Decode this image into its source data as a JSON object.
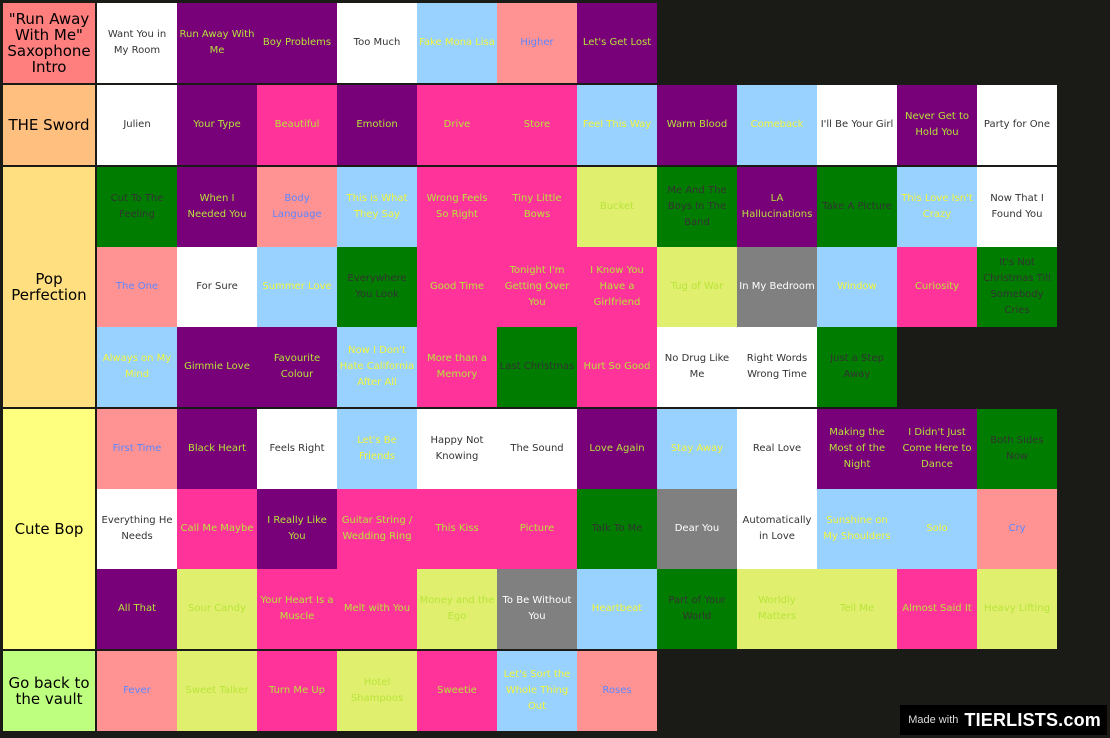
{
  "colors": {
    "white": "#ffffff",
    "purple": "#780078",
    "pink": "#ff3399",
    "salmon": "#ff9393",
    "lightblue": "#99d1ff",
    "green": "#007c00",
    "yellow": "#e0ef6d",
    "gray": "#808080",
    "text_dark": "#333333",
    "text_lightgreen": "#b8e43a",
    "text_yellow": "#f3f63a",
    "text_blue": "#5a86ff",
    "text_white": "#ffffff",
    "text_black": "#000000"
  },
  "tiers": [
    {
      "label": "\"Run Away With Me\" Saxophone Intro",
      "color": "#ff7f7f",
      "items": [
        {
          "text": "Want You in My Room",
          "bg": "white",
          "fg": "text_dark"
        },
        {
          "text": "Run Away With Me",
          "bg": "purple",
          "fg": "text_lightgreen"
        },
        {
          "text": "Boy Problems",
          "bg": "purple",
          "fg": "text_lightgreen"
        },
        {
          "text": "Too Much",
          "bg": "white",
          "fg": "text_dark"
        },
        {
          "text": "Fake Mona Lisa",
          "bg": "lightblue",
          "fg": "text_yellow"
        },
        {
          "text": "Higher",
          "bg": "salmon",
          "fg": "text_blue"
        },
        {
          "text": "Let's Get Lost",
          "bg": "purple",
          "fg": "text_lightgreen"
        }
      ]
    },
    {
      "label": "THE Sword",
      "color": "#ffbf7f",
      "items": [
        {
          "text": "Julien",
          "bg": "white",
          "fg": "text_dark"
        },
        {
          "text": "Your Type",
          "bg": "purple",
          "fg": "text_lightgreen"
        },
        {
          "text": "Beautiful",
          "bg": "pink",
          "fg": "text_lightgreen"
        },
        {
          "text": "Emotion",
          "bg": "purple",
          "fg": "text_lightgreen"
        },
        {
          "text": "Drive",
          "bg": "pink",
          "fg": "text_lightgreen"
        },
        {
          "text": "Store",
          "bg": "pink",
          "fg": "text_lightgreen"
        },
        {
          "text": "Feel This Way",
          "bg": "lightblue",
          "fg": "text_yellow"
        },
        {
          "text": "Warm Blood",
          "bg": "purple",
          "fg": "text_lightgreen"
        },
        {
          "text": "Comeback",
          "bg": "lightblue",
          "fg": "text_yellow"
        },
        {
          "text": "I'll Be Your Girl",
          "bg": "white",
          "fg": "text_dark"
        },
        {
          "text": "Never Get to Hold You",
          "bg": "purple",
          "fg": "text_lightgreen"
        },
        {
          "text": "Party for One",
          "bg": "white",
          "fg": "text_dark"
        }
      ]
    },
    {
      "label": "Pop Perfection",
      "color": "#ffdf7f",
      "items": [
        {
          "text": "Cut To The Feeling",
          "bg": "green",
          "fg": "text_dark"
        },
        {
          "text": "When I Needed You",
          "bg": "purple",
          "fg": "text_lightgreen"
        },
        {
          "text": "Body Language",
          "bg": "salmon",
          "fg": "text_blue"
        },
        {
          "text": "This is What They Say",
          "bg": "lightblue",
          "fg": "text_yellow"
        },
        {
          "text": "Wrong Feels So Right",
          "bg": "pink",
          "fg": "text_lightgreen"
        },
        {
          "text": "Tiny Little Bows",
          "bg": "pink",
          "fg": "text_lightgreen"
        },
        {
          "text": "Bucket",
          "bg": "yellow",
          "fg": "text_lightgreen"
        },
        {
          "text": "Me And The Boys In The Band",
          "bg": "green",
          "fg": "text_dark"
        },
        {
          "text": "LA Hallucinations",
          "bg": "purple",
          "fg": "text_lightgreen"
        },
        {
          "text": "Take A Picture",
          "bg": "green",
          "fg": "text_dark"
        },
        {
          "text": "This Love Isn't Crazy",
          "bg": "lightblue",
          "fg": "text_yellow"
        },
        {
          "text": "Now That I Found You",
          "bg": "white",
          "fg": "text_dark"
        },
        {
          "text": "The One",
          "bg": "salmon",
          "fg": "text_blue"
        },
        {
          "text": "For Sure",
          "bg": "white",
          "fg": "text_dark"
        },
        {
          "text": "Summer Love",
          "bg": "lightblue",
          "fg": "text_yellow"
        },
        {
          "text": "Everywhere You Look",
          "bg": "green",
          "fg": "text_dark"
        },
        {
          "text": "Good Time",
          "bg": "pink",
          "fg": "text_lightgreen"
        },
        {
          "text": "Tonight I'm Getting Over You",
          "bg": "pink",
          "fg": "text_lightgreen"
        },
        {
          "text": "I Know You Have a Girlfriend",
          "bg": "pink",
          "fg": "text_lightgreen"
        },
        {
          "text": "Tug of War",
          "bg": "yellow",
          "fg": "text_lightgreen"
        },
        {
          "text": "In My Bedroom",
          "bg": "gray",
          "fg": "text_white"
        },
        {
          "text": "Window",
          "bg": "lightblue",
          "fg": "text_yellow"
        },
        {
          "text": "Curiosity",
          "bg": "pink",
          "fg": "text_lightgreen"
        },
        {
          "text": "It's Not Christmas Till Somebody Cries",
          "bg": "green",
          "fg": "text_dark"
        },
        {
          "text": "Always on My Mind",
          "bg": "lightblue",
          "fg": "text_yellow"
        },
        {
          "text": "Gimmie Love",
          "bg": "purple",
          "fg": "text_lightgreen"
        },
        {
          "text": "Favourite Colour",
          "bg": "purple",
          "fg": "text_lightgreen"
        },
        {
          "text": "Now I Don't Hate California After All",
          "bg": "lightblue",
          "fg": "text_yellow"
        },
        {
          "text": "More than a Memory",
          "bg": "pink",
          "fg": "text_lightgreen"
        },
        {
          "text": "Last Christmas",
          "bg": "green",
          "fg": "text_dark"
        },
        {
          "text": "Hurt So Good",
          "bg": "pink",
          "fg": "text_lightgreen"
        },
        {
          "text": "No Drug Like Me",
          "bg": "white",
          "fg": "text_dark"
        },
        {
          "text": "Right Words Wrong Time",
          "bg": "white",
          "fg": "text_dark"
        },
        {
          "text": "Just a Step Away",
          "bg": "green",
          "fg": "text_dark"
        }
      ]
    },
    {
      "label": "Cute Bop",
      "color": "#ffff7f",
      "items": [
        {
          "text": "First Time",
          "bg": "salmon",
          "fg": "text_blue"
        },
        {
          "text": "Black Heart",
          "bg": "purple",
          "fg": "text_lightgreen"
        },
        {
          "text": "Feels Right",
          "bg": "white",
          "fg": "text_dark"
        },
        {
          "text": "Let's Be Friends",
          "bg": "lightblue",
          "fg": "text_yellow"
        },
        {
          "text": "Happy Not Knowing",
          "bg": "white",
          "fg": "text_dark"
        },
        {
          "text": "The Sound",
          "bg": "white",
          "fg": "text_dark"
        },
        {
          "text": "Love Again",
          "bg": "purple",
          "fg": "text_lightgreen"
        },
        {
          "text": "Stay Away",
          "bg": "lightblue",
          "fg": "text_yellow"
        },
        {
          "text": "Real Love",
          "bg": "white",
          "fg": "text_dark"
        },
        {
          "text": "Making the Most of the Night",
          "bg": "purple",
          "fg": "text_lightgreen"
        },
        {
          "text": "I Didn't Just Come Here to Dance",
          "bg": "purple",
          "fg": "text_lightgreen"
        },
        {
          "text": "Both Sides Now",
          "bg": "green",
          "fg": "text_dark"
        },
        {
          "text": "Everything He Needs",
          "bg": "white",
          "fg": "text_dark"
        },
        {
          "text": "Call Me Maybe",
          "bg": "pink",
          "fg": "text_lightgreen"
        },
        {
          "text": "I Really Like You",
          "bg": "purple",
          "fg": "text_lightgreen"
        },
        {
          "text": "Guitar String / Wedding Ring",
          "bg": "pink",
          "fg": "text_lightgreen"
        },
        {
          "text": "This Kiss",
          "bg": "pink",
          "fg": "text_lightgreen"
        },
        {
          "text": "Picture",
          "bg": "pink",
          "fg": "text_lightgreen"
        },
        {
          "text": "Talk To Me",
          "bg": "green",
          "fg": "text_dark"
        },
        {
          "text": "Dear You",
          "bg": "gray",
          "fg": "text_white"
        },
        {
          "text": "Automatically in Love",
          "bg": "white",
          "fg": "text_dark"
        },
        {
          "text": "Sunshine on My Shoulders",
          "bg": "lightblue",
          "fg": "text_yellow"
        },
        {
          "text": "Solo",
          "bg": "lightblue",
          "fg": "text_yellow"
        },
        {
          "text": "Cry",
          "bg": "salmon",
          "fg": "text_blue"
        },
        {
          "text": "All That",
          "bg": "purple",
          "fg": "text_lightgreen"
        },
        {
          "text": "Sour Candy",
          "bg": "yellow",
          "fg": "text_lightgreen"
        },
        {
          "text": "Your Heart Is a Muscle",
          "bg": "pink",
          "fg": "text_lightgreen"
        },
        {
          "text": "Melt with You",
          "bg": "pink",
          "fg": "text_lightgreen"
        },
        {
          "text": "Money and the Ego",
          "bg": "yellow",
          "fg": "text_lightgreen"
        },
        {
          "text": "To Be Without You",
          "bg": "gray",
          "fg": "text_white"
        },
        {
          "text": "Heartbeat",
          "bg": "lightblue",
          "fg": "text_yellow"
        },
        {
          "text": "Part of Your World",
          "bg": "green",
          "fg": "text_dark"
        },
        {
          "text": "Worldly Matters",
          "bg": "yellow",
          "fg": "text_lightgreen"
        },
        {
          "text": "Tell Me",
          "bg": "yellow",
          "fg": "text_lightgreen"
        },
        {
          "text": "Almost Said It",
          "bg": "pink",
          "fg": "text_lightgreen"
        },
        {
          "text": "Heavy Lifting",
          "bg": "yellow",
          "fg": "text_lightgreen"
        }
      ]
    },
    {
      "label": "Go back to the vault",
      "color": "#bfff7f",
      "items": [
        {
          "text": "Fever",
          "bg": "salmon",
          "fg": "text_blue"
        },
        {
          "text": "Sweet Talker",
          "bg": "yellow",
          "fg": "text_lightgreen"
        },
        {
          "text": "Turn Me Up",
          "bg": "pink",
          "fg": "text_lightgreen"
        },
        {
          "text": "Hotel Shampoos",
          "bg": "yellow",
          "fg": "text_lightgreen"
        },
        {
          "text": "Sweetie",
          "bg": "pink",
          "fg": "text_lightgreen"
        },
        {
          "text": "Let's Sort the Whole Thing Out",
          "bg": "lightblue",
          "fg": "text_yellow"
        },
        {
          "text": "Roses",
          "bg": "salmon",
          "fg": "text_blue"
        }
      ]
    }
  ],
  "watermark": {
    "made_with": "Made with",
    "brand": "TIERLISTS.com"
  }
}
